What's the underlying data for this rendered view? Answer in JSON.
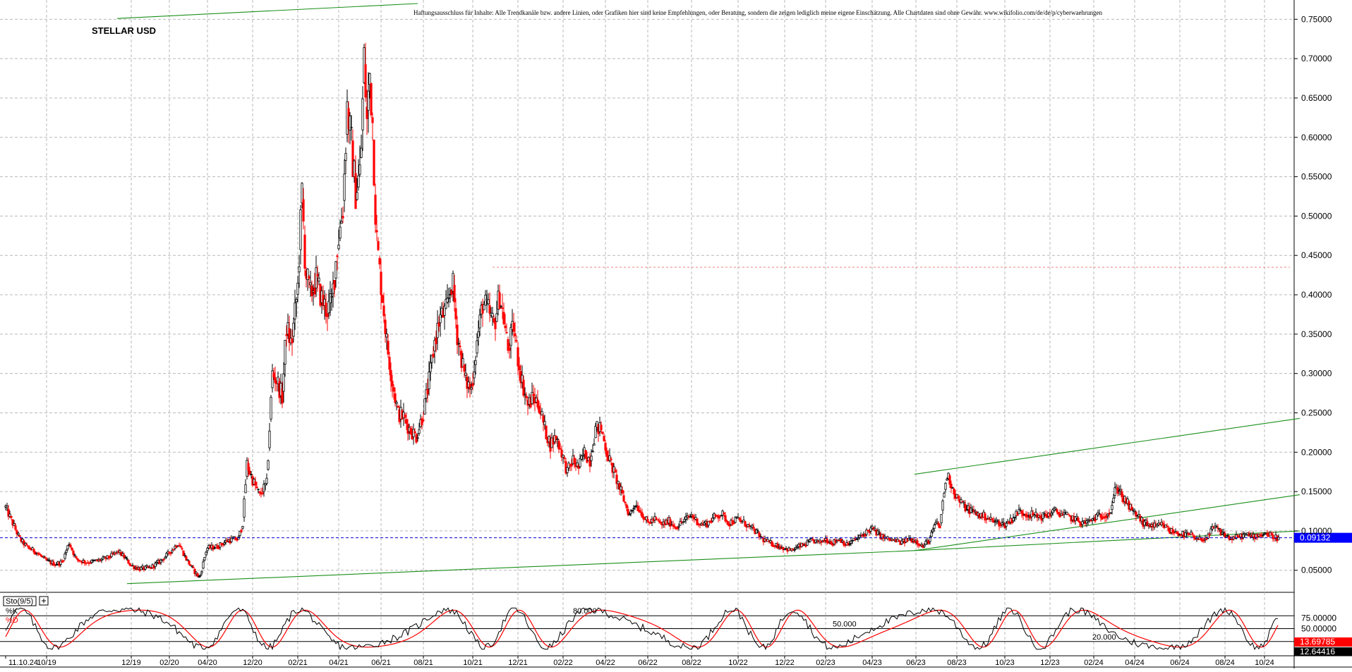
{
  "chart_data": {
    "type": "candlestick",
    "title": "STELLAR USD",
    "disclaimer": "Haftungsausschluss für Inhalte: Alle Trendkanäle bzw. andere Linien, oder Grafiken hier sind keine Empfehlungen, oder Beratung, sondern die zeigen lediglich meine eigene Einschätzung. Alle Chartdaten sind ohne Gewähr.  www.wikifolio.com/de/de/p/cyberwaehrungen",
    "y_ticks": [
      "0.05000",
      "0.10000",
      "0.15000",
      "0.20000",
      "0.25000",
      "0.30000",
      "0.35000",
      "0.40000",
      "0.45000",
      "0.50000",
      "0.55000",
      "0.60000",
      "0.65000",
      "0.70000",
      "0.75000"
    ],
    "ylim": [
      0.022,
      0.77
    ],
    "x_ticks": [
      "11.10.24",
      "10/19",
      "12/19",
      "02/20",
      "04/20",
      "12/20",
      "02/21",
      "04/21",
      "06/21",
      "08/21",
      "10/21",
      "12/21",
      "02/22",
      "04/22",
      "06/22",
      "08/22",
      "10/22",
      "12/22",
      "02/23",
      "04/23",
      "06/23",
      "08/23",
      "10/23",
      "12/23",
      "02/24",
      "04/24",
      "06/24",
      "08/24",
      "10/24"
    ],
    "x_tick_pos": [
      0.0,
      58,
      178,
      232,
      286,
      350,
      414,
      472,
      532,
      592,
      662,
      726,
      790,
      850,
      910,
      972,
      1038,
      1104,
      1162,
      1228,
      1290,
      1348,
      1416,
      1480,
      1542,
      1600,
      1664,
      1728,
      1784
    ],
    "current_price": "0.09132",
    "current_level": 0.0913,
    "resistance_level": 0.435,
    "price_path": [
      [
        0.0,
        0.13
      ],
      [
        10,
        0.11
      ],
      [
        20,
        0.09
      ],
      [
        30,
        0.08
      ],
      [
        45,
        0.072
      ],
      [
        58,
        0.062
      ],
      [
        70,
        0.058
      ],
      [
        80,
        0.06
      ],
      [
        90,
        0.085
      ],
      [
        100,
        0.064
      ],
      [
        115,
        0.06
      ],
      [
        130,
        0.062
      ],
      [
        145,
        0.066
      ],
      [
        160,
        0.074
      ],
      [
        170,
        0.065
      ],
      [
        178,
        0.056
      ],
      [
        190,
        0.052
      ],
      [
        205,
        0.053
      ],
      [
        220,
        0.062
      ],
      [
        235,
        0.075
      ],
      [
        245,
        0.085
      ],
      [
        255,
        0.066
      ],
      [
        265,
        0.052
      ],
      [
        275,
        0.04
      ],
      [
        285,
        0.078
      ],
      [
        300,
        0.08
      ],
      [
        315,
        0.088
      ],
      [
        330,
        0.09
      ],
      [
        336,
        0.11
      ],
      [
        342,
        0.185
      ],
      [
        350,
        0.165
      ],
      [
        360,
        0.145
      ],
      [
        370,
        0.16
      ],
      [
        378,
        0.3
      ],
      [
        385,
        0.29
      ],
      [
        392,
        0.27
      ],
      [
        398,
        0.36
      ],
      [
        405,
        0.335
      ],
      [
        414,
        0.41
      ],
      [
        420,
        0.53
      ],
      [
        425,
        0.43
      ],
      [
        432,
        0.4
      ],
      [
        440,
        0.42
      ],
      [
        448,
        0.395
      ],
      [
        455,
        0.38
      ],
      [
        462,
        0.39
      ],
      [
        470,
        0.46
      ],
      [
        478,
        0.51
      ],
      [
        484,
        0.64
      ],
      [
        490,
        0.59
      ],
      [
        496,
        0.53
      ],
      [
        503,
        0.56
      ],
      [
        508,
        0.7
      ],
      [
        512,
        0.62
      ],
      [
        516,
        0.68
      ],
      [
        520,
        0.62
      ],
      [
        525,
        0.48
      ],
      [
        530,
        0.43
      ],
      [
        535,
        0.39
      ],
      [
        540,
        0.34
      ],
      [
        548,
        0.29
      ],
      [
        556,
        0.25
      ],
      [
        564,
        0.245
      ],
      [
        572,
        0.23
      ],
      [
        582,
        0.22
      ],
      [
        592,
        0.25
      ],
      [
        600,
        0.29
      ],
      [
        608,
        0.34
      ],
      [
        615,
        0.37
      ],
      [
        625,
        0.38
      ],
      [
        633,
        0.42
      ],
      [
        640,
        0.35
      ],
      [
        646,
        0.32
      ],
      [
        652,
        0.29
      ],
      [
        660,
        0.28
      ],
      [
        668,
        0.34
      ],
      [
        676,
        0.39
      ],
      [
        684,
        0.38
      ],
      [
        692,
        0.36
      ],
      [
        700,
        0.4
      ],
      [
        706,
        0.37
      ],
      [
        712,
        0.33
      ],
      [
        720,
        0.36
      ],
      [
        726,
        0.32
      ],
      [
        732,
        0.29
      ],
      [
        740,
        0.26
      ],
      [
        748,
        0.27
      ],
      [
        756,
        0.26
      ],
      [
        764,
        0.23
      ],
      [
        772,
        0.21
      ],
      [
        780,
        0.22
      ],
      [
        788,
        0.2
      ],
      [
        796,
        0.175
      ],
      [
        804,
        0.19
      ],
      [
        812,
        0.18
      ],
      [
        820,
        0.2
      ],
      [
        828,
        0.19
      ],
      [
        836,
        0.23
      ],
      [
        844,
        0.23
      ],
      [
        852,
        0.2
      ],
      [
        860,
        0.18
      ],
      [
        868,
        0.16
      ],
      [
        876,
        0.14
      ],
      [
        884,
        0.12
      ],
      [
        892,
        0.135
      ],
      [
        900,
        0.125
      ],
      [
        910,
        0.11
      ],
      [
        920,
        0.115
      ],
      [
        930,
        0.108
      ],
      [
        940,
        0.112
      ],
      [
        950,
        0.105
      ],
      [
        960,
        0.112
      ],
      [
        972,
        0.12
      ],
      [
        985,
        0.108
      ],
      [
        995,
        0.11
      ],
      [
        1005,
        0.118
      ],
      [
        1015,
        0.122
      ],
      [
        1025,
        0.11
      ],
      [
        1038,
        0.115
      ],
      [
        1050,
        0.108
      ],
      [
        1062,
        0.1
      ],
      [
        1072,
        0.09
      ],
      [
        1082,
        0.085
      ],
      [
        1092,
        0.082
      ],
      [
        1104,
        0.078
      ],
      [
        1114,
        0.075
      ],
      [
        1124,
        0.08
      ],
      [
        1134,
        0.083
      ],
      [
        1144,
        0.088
      ],
      [
        1154,
        0.085
      ],
      [
        1162,
        0.09
      ],
      [
        1172,
        0.085
      ],
      [
        1182,
        0.09
      ],
      [
        1192,
        0.082
      ],
      [
        1202,
        0.088
      ],
      [
        1212,
        0.093
      ],
      [
        1222,
        0.1
      ],
      [
        1228,
        0.103
      ],
      [
        1238,
        0.095
      ],
      [
        1248,
        0.09
      ],
      [
        1258,
        0.088
      ],
      [
        1270,
        0.085
      ],
      [
        1280,
        0.09
      ],
      [
        1290,
        0.088
      ],
      [
        1300,
        0.08
      ],
      [
        1310,
        0.09
      ],
      [
        1318,
        0.11
      ],
      [
        1324,
        0.105
      ],
      [
        1330,
        0.15
      ],
      [
        1334,
        0.17
      ],
      [
        1338,
        0.165
      ],
      [
        1344,
        0.15
      ],
      [
        1350,
        0.14
      ],
      [
        1360,
        0.13
      ],
      [
        1370,
        0.125
      ],
      [
        1380,
        0.12
      ],
      [
        1390,
        0.118
      ],
      [
        1400,
        0.112
      ],
      [
        1410,
        0.11
      ],
      [
        1416,
        0.108
      ],
      [
        1426,
        0.115
      ],
      [
        1436,
        0.125
      ],
      [
        1446,
        0.122
      ],
      [
        1456,
        0.12
      ],
      [
        1466,
        0.118
      ],
      [
        1476,
        0.12
      ],
      [
        1486,
        0.125
      ],
      [
        1496,
        0.122
      ],
      [
        1506,
        0.118
      ],
      [
        1516,
        0.115
      ],
      [
        1526,
        0.11
      ],
      [
        1536,
        0.112
      ],
      [
        1546,
        0.118
      ],
      [
        1556,
        0.12
      ],
      [
        1566,
        0.125
      ],
      [
        1572,
        0.15
      ],
      [
        1578,
        0.155
      ],
      [
        1584,
        0.14
      ],
      [
        1590,
        0.135
      ],
      [
        1596,
        0.125
      ],
      [
        1604,
        0.12
      ],
      [
        1612,
        0.11
      ],
      [
        1620,
        0.108
      ],
      [
        1630,
        0.105
      ],
      [
        1640,
        0.108
      ],
      [
        1650,
        0.1
      ],
      [
        1660,
        0.098
      ],
      [
        1670,
        0.095
      ],
      [
        1680,
        0.095
      ],
      [
        1688,
        0.088
      ],
      [
        1696,
        0.09
      ],
      [
        1704,
        0.092
      ],
      [
        1712,
        0.105
      ],
      [
        1720,
        0.1
      ],
      [
        1728,
        0.095
      ],
      [
        1736,
        0.09
      ],
      [
        1746,
        0.092
      ],
      [
        1756,
        0.095
      ],
      [
        1766,
        0.093
      ],
      [
        1776,
        0.095
      ],
      [
        1786,
        0.097
      ],
      [
        1796,
        0.093
      ],
      [
        1804,
        0.091
      ]
    ],
    "trendlines": [
      {
        "x1": 158,
        "y1": 0.751,
        "x2": 584,
        "y2": 0.77
      },
      {
        "x1": 172,
        "y1": 0.033,
        "x2": 1288,
        "y2": 0.075
      },
      {
        "x1": 1288,
        "y1": 0.075,
        "x2": 1834,
        "y2": 0.1
      },
      {
        "x1": 1288,
        "y1": 0.172,
        "x2": 1834,
        "y2": 0.243
      },
      {
        "x1": 1288,
        "y1": 0.075,
        "x2": 1834,
        "y2": 0.146
      }
    ],
    "stochastic": {
      "label": "Sto(9/5)",
      "k_label": "%K",
      "d_label": "%D",
      "y_ticks": [
        "75.00000",
        "50.00000"
      ],
      "level_labels": [
        "80.000",
        "50.000",
        "20.000"
      ],
      "k_value": "13.69785",
      "d_value": "12.64416"
    }
  }
}
